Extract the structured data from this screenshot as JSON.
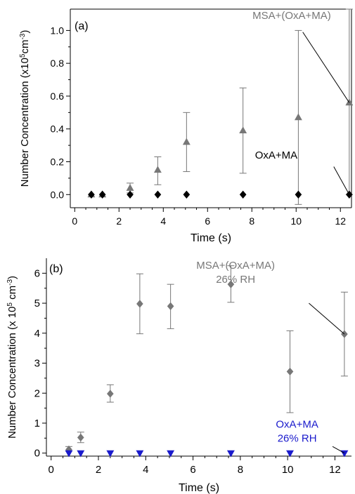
{
  "chart_data": [
    {
      "panel_label": "(a)",
      "type": "scatter",
      "xlabel": "Time (s)",
      "ylabel": "Number Concentration (x10",
      "ylabel_exp": "5",
      "ylabel_unit": "cm",
      "ylabel_unit_exp": "-3",
      "ylabel_close": ")",
      "xlim": [
        -0.2,
        12.5
      ],
      "ylim": [
        -0.08,
        1.13
      ],
      "xticks": [
        0,
        2,
        4,
        6,
        8,
        10,
        12
      ],
      "yticks": [
        0.0,
        0.2,
        0.4,
        0.6,
        0.8,
        1.0
      ],
      "ytick_labels": [
        "0.0",
        "0.2",
        "0.4",
        "0.6",
        "0.8",
        "1.0"
      ],
      "frame": "box",
      "series": [
        {
          "label": "MSA+(OxA+MA)",
          "color": "#777777",
          "marker": "triangle-up",
          "x": [
            0.75,
            1.25,
            2.5,
            3.75,
            5.05,
            7.6,
            10.1,
            12.4
          ],
          "y": [
            0.0,
            0.0,
            0.04,
            0.15,
            0.32,
            0.39,
            0.47,
            0.56
          ],
          "err_low": [
            0.0,
            0.0,
            0.01,
            0.06,
            0.14,
            0.13,
            -0.06,
            0.0
          ],
          "err_high": [
            0.0,
            0.0,
            0.07,
            0.23,
            0.5,
            0.65,
            1.0,
            1.13
          ]
        },
        {
          "label": "OxA+MA",
          "color": "#000000",
          "marker": "diamond",
          "x": [
            0.75,
            1.25,
            2.5,
            3.75,
            5.05,
            7.6,
            10.1,
            12.4
          ],
          "y": [
            0.0,
            0.0,
            0.0,
            0.0,
            0.0,
            0.0,
            0.0,
            0.0
          ]
        }
      ],
      "annotations": [
        {
          "text": "MSA+(OxA+MA)",
          "color": "#777777",
          "tx": 9.8,
          "ty": 1.07,
          "ax": 12.4,
          "ay": 0.56,
          "lx": 10.3,
          "ly": 0.99
        },
        {
          "text": "OxA+MA",
          "color": "#000000",
          "tx": 9.1,
          "ty": 0.22,
          "ax": 12.4,
          "ay": 0.0,
          "lx": 11.7,
          "ly": 0.17
        }
      ]
    },
    {
      "panel_label": "(b)",
      "type": "scatter",
      "xlabel": "Time (s)",
      "ylabel": "Number Concentration (x 10",
      "ylabel_exp": "5",
      "ylabel_unit": " cm",
      "ylabel_unit_exp": "-3",
      "ylabel_close": ")",
      "xlim": [
        -0.2,
        12.7
      ],
      "ylim": [
        -0.1,
        6.5
      ],
      "xticks": [
        0,
        2,
        4,
        6,
        8,
        10,
        12
      ],
      "yticks": [
        0,
        1,
        2,
        3,
        4,
        5,
        6
      ],
      "ytick_labels": [
        "0",
        "1",
        "2",
        "3",
        "4",
        "5",
        "6"
      ],
      "frame": "axes",
      "series": [
        {
          "label": "MSA+(OxA+MA)",
          "color": "#777777",
          "marker": "diamond",
          "x": [
            0.75,
            1.25,
            2.5,
            3.75,
            5.05,
            7.6,
            10.1,
            12.4
          ],
          "y": [
            0.12,
            0.52,
            1.98,
            4.98,
            4.9,
            5.63,
            2.72,
            3.97
          ],
          "err_low": [
            0.07,
            0.35,
            1.7,
            3.98,
            4.15,
            5.03,
            1.35,
            2.57
          ],
          "err_high": [
            0.22,
            0.7,
            2.28,
            5.98,
            5.63,
            6.25,
            4.08,
            5.37
          ]
        },
        {
          "label": "OxA+MA",
          "color": "#1a1acc",
          "marker": "triangle-down",
          "x": [
            0.75,
            1.25,
            2.5,
            3.75,
            5.05,
            7.6,
            10.1,
            12.4
          ],
          "y": [
            0.0,
            0.0,
            0.0,
            0.0,
            0.0,
            0.0,
            0.0,
            0.0
          ]
        }
      ],
      "annotations": [
        {
          "text": "MSA+(OxA+MA)",
          "text2": "26% RH",
          "color": "#777777",
          "tx": 7.8,
          "ty": 6.15,
          "ax": 12.4,
          "ay": 3.97,
          "lx": 10.9,
          "ly": 5.0
        },
        {
          "text": "OxA+MA",
          "text2": "26% RH",
          "color": "#1a1acc",
          "tx": 10.4,
          "ty": 0.85,
          "ax": 12.4,
          "ay": 0.0,
          "lx": 11.9,
          "ly": 0.22
        }
      ]
    }
  ]
}
